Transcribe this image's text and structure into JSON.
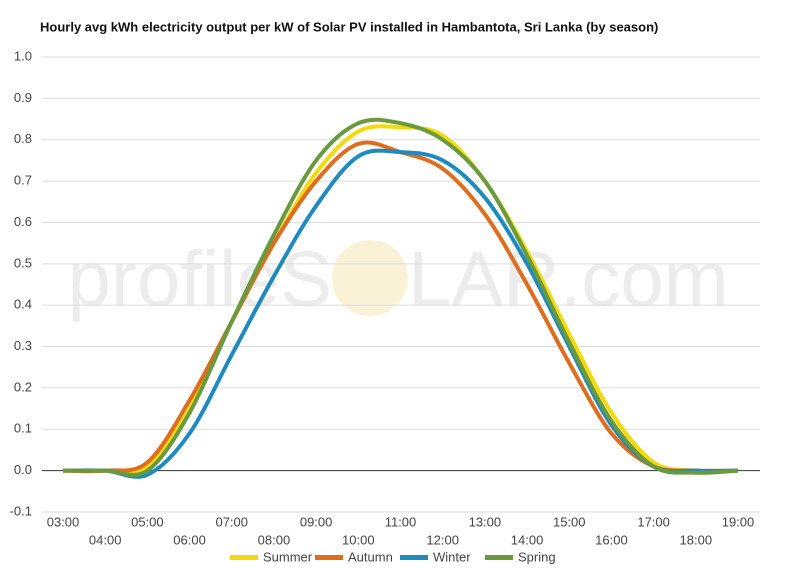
{
  "chart_data": {
    "type": "line",
    "title": "Hourly avg kWh electricity output per kW of Solar PV installed in Hambantota, Sri Lanka (by season)",
    "watermark": [
      "profileS",
      "LAR.com"
    ],
    "categories": [
      "03:00",
      "04:00",
      "05:00",
      "06:00",
      "07:00",
      "08:00",
      "09:00",
      "10:00",
      "11:00",
      "12:00",
      "13:00",
      "14:00",
      "15:00",
      "16:00",
      "17:00",
      "18:00",
      "19:00"
    ],
    "series": [
      {
        "name": "Summer",
        "color": "#f5d90a",
        "values": [
          0,
          0,
          0.01,
          0.15,
          0.36,
          0.55,
          0.72,
          0.82,
          0.83,
          0.81,
          0.7,
          0.53,
          0.33,
          0.14,
          0.02,
          0,
          0
        ]
      },
      {
        "name": "Autumn",
        "color": "#e06c1e",
        "values": [
          0,
          0,
          0.02,
          0.17,
          0.36,
          0.55,
          0.7,
          0.79,
          0.77,
          0.73,
          0.62,
          0.45,
          0.26,
          0.09,
          0.01,
          0,
          0
        ]
      },
      {
        "name": "Winter",
        "color": "#1f8ac0",
        "values": [
          0,
          0,
          -0.01,
          0.09,
          0.28,
          0.47,
          0.64,
          0.76,
          0.77,
          0.75,
          0.66,
          0.5,
          0.3,
          0.11,
          0.01,
          0,
          0
        ]
      },
      {
        "name": "Spring",
        "color": "#6a9a3e",
        "values": [
          0,
          0,
          0,
          0.14,
          0.36,
          0.57,
          0.75,
          0.84,
          0.84,
          0.8,
          0.7,
          0.52,
          0.31,
          0.12,
          0.01,
          -0.005,
          0
        ]
      }
    ],
    "ylim": [
      -0.1,
      1.0
    ],
    "yticks": [
      {
        "value": -0.1,
        "label": "-0.1"
      },
      {
        "value": 0,
        "label": "0.0"
      },
      0.1,
      0.2,
      0.3,
      0.4,
      0.5,
      0.6,
      0.7,
      0.8,
      0.9,
      {
        "value": 1,
        "label": "1.0"
      }
    ],
    "grid": true
  }
}
